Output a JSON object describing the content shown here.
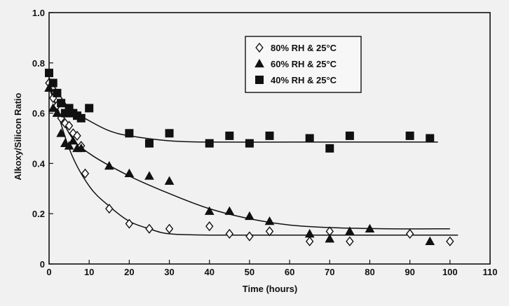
{
  "chart_data": {
    "type": "scatter",
    "xlabel": "Time (hours)",
    "ylabel": "Alkoxy/Silicon Ratio",
    "xlim": [
      0,
      110
    ],
    "ylim": [
      0,
      1.0
    ],
    "x_ticks": [
      "0",
      "10",
      "20",
      "30",
      "40",
      "50",
      "60",
      "70",
      "80",
      "90",
      "100",
      "110"
    ],
    "y_ticks": [
      "0",
      "0.2",
      "0.4",
      "0.6",
      "0.8",
      "1.0"
    ],
    "grid": false,
    "legend_position": "top-center",
    "series": [
      {
        "name": "80% RH & 25°C",
        "marker": "diamond-open",
        "color": "#111111",
        "points": [
          [
            0,
            0.72
          ],
          [
            1,
            0.66
          ],
          [
            2,
            0.63
          ],
          [
            3,
            0.58
          ],
          [
            4,
            0.56
          ],
          [
            5,
            0.55
          ],
          [
            6,
            0.52
          ],
          [
            7,
            0.51
          ],
          [
            8,
            0.47
          ],
          [
            9,
            0.36
          ],
          [
            15,
            0.22
          ],
          [
            20,
            0.16
          ],
          [
            25,
            0.14
          ],
          [
            30,
            0.14
          ],
          [
            40,
            0.15
          ],
          [
            45,
            0.12
          ],
          [
            50,
            0.11
          ],
          [
            55,
            0.13
          ],
          [
            65,
            0.09
          ],
          [
            70,
            0.13
          ],
          [
            75,
            0.09
          ],
          [
            90,
            0.12
          ],
          [
            100,
            0.09
          ]
        ],
        "fit": [
          [
            0,
            0.72
          ],
          [
            5,
            0.46
          ],
          [
            10,
            0.31
          ],
          [
            15,
            0.23
          ],
          [
            20,
            0.17
          ],
          [
            25,
            0.14
          ],
          [
            30,
            0.12
          ],
          [
            40,
            0.115
          ],
          [
            60,
            0.115
          ],
          [
            80,
            0.115
          ],
          [
            102,
            0.115
          ]
        ]
      },
      {
        "name": "60% RH & 25°C",
        "marker": "triangle-filled",
        "color": "#111111",
        "points": [
          [
            0,
            0.7
          ],
          [
            1,
            0.62
          ],
          [
            2,
            0.6
          ],
          [
            3,
            0.52
          ],
          [
            4,
            0.48
          ],
          [
            5,
            0.47
          ],
          [
            6,
            0.49
          ],
          [
            7,
            0.46
          ],
          [
            8,
            0.46
          ],
          [
            15,
            0.39
          ],
          [
            20,
            0.36
          ],
          [
            25,
            0.35
          ],
          [
            30,
            0.33
          ],
          [
            40,
            0.21
          ],
          [
            45,
            0.21
          ],
          [
            50,
            0.19
          ],
          [
            55,
            0.17
          ],
          [
            65,
            0.12
          ],
          [
            70,
            0.1
          ],
          [
            75,
            0.13
          ],
          [
            80,
            0.14
          ],
          [
            95,
            0.09
          ]
        ],
        "fit": [
          [
            0,
            0.7
          ],
          [
            5,
            0.52
          ],
          [
            10,
            0.44
          ],
          [
            20,
            0.35
          ],
          [
            30,
            0.28
          ],
          [
            40,
            0.22
          ],
          [
            50,
            0.18
          ],
          [
            60,
            0.155
          ],
          [
            70,
            0.145
          ],
          [
            85,
            0.14
          ],
          [
            100,
            0.14
          ]
        ]
      },
      {
        "name": "40% RH & 25°C",
        "marker": "square-filled",
        "color": "#111111",
        "points": [
          [
            0,
            0.76
          ],
          [
            1,
            0.72
          ],
          [
            2,
            0.68
          ],
          [
            3,
            0.64
          ],
          [
            4,
            0.6
          ],
          [
            5,
            0.62
          ],
          [
            6,
            0.6
          ],
          [
            7,
            0.59
          ],
          [
            8,
            0.58
          ],
          [
            10,
            0.62
          ],
          [
            20,
            0.52
          ],
          [
            25,
            0.48
          ],
          [
            30,
            0.52
          ],
          [
            40,
            0.48
          ],
          [
            45,
            0.51
          ],
          [
            50,
            0.48
          ],
          [
            55,
            0.51
          ],
          [
            65,
            0.5
          ],
          [
            70,
            0.46
          ],
          [
            75,
            0.51
          ],
          [
            90,
            0.51
          ],
          [
            95,
            0.5
          ]
        ],
        "fit": [
          [
            0,
            0.74
          ],
          [
            5,
            0.62
          ],
          [
            10,
            0.57
          ],
          [
            15,
            0.53
          ],
          [
            20,
            0.51
          ],
          [
            30,
            0.49
          ],
          [
            40,
            0.485
          ],
          [
            60,
            0.485
          ],
          [
            80,
            0.485
          ],
          [
            97,
            0.485
          ]
        ]
      }
    ]
  }
}
